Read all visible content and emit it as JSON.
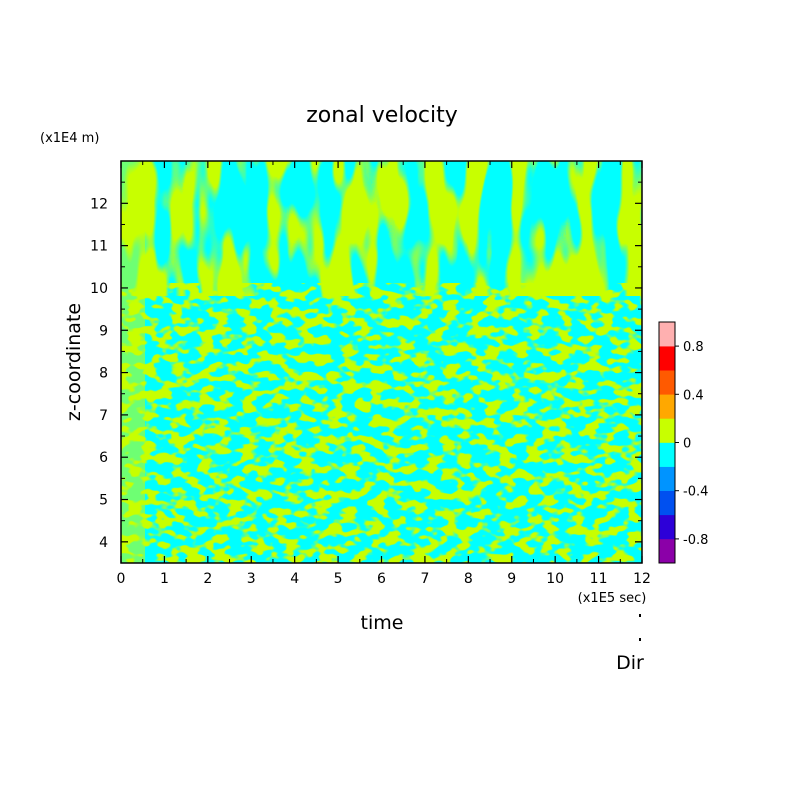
{
  "chart_data": {
    "type": "heatmap",
    "title": "zonal velocity",
    "xlabel": "time",
    "ylabel": "z-coordinate",
    "x_unit_label": "(x1E5 sec)",
    "y_unit_label": "(x1E4 m)",
    "xlim": [
      0,
      12
    ],
    "ylim": [
      3.5,
      13
    ],
    "x_ticks": [
      "0",
      "1",
      "2",
      "3",
      "4",
      "5",
      "6",
      "7",
      "8",
      "9",
      "10",
      "11",
      "12"
    ],
    "y_ticks": [
      "4",
      "5",
      "6",
      "7",
      "8",
      "9",
      "10",
      "11",
      "12"
    ],
    "colorbar": {
      "range": [
        -1.0,
        1.0
      ],
      "step": 0.2,
      "tick_labels": [
        "0.8",
        "0.4",
        "0",
        "-0.4",
        "-0.8"
      ],
      "colors": [
        "#8b00a8",
        "#2d00d8",
        "#0050f0",
        "#0094ff",
        "#00ffff",
        "#c8ff00",
        "#ffa800",
        "#ff5a00",
        "#ff0000",
        "#ffb0b0"
      ]
    },
    "dominant_levels": [
      "-0.2 to 0 (cyan)",
      "0 to 0.2 (yellow-green)"
    ],
    "annotation": "Dir"
  }
}
